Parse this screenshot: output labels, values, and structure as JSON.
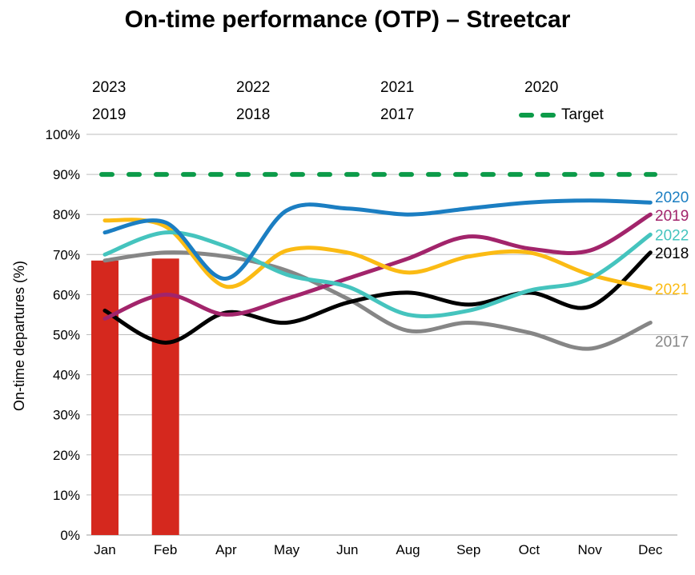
{
  "chart_data": {
    "type": "combo-bar-line",
    "title": "On-time performance (OTP) – Streetcar",
    "ylabel": "On-time departures (%)",
    "xlabel": "",
    "categories": [
      "Jan",
      "Feb",
      "Apr",
      "May",
      "Jun",
      "Aug",
      "Sep",
      "Oct",
      "Nov",
      "Dec"
    ],
    "ylim": [
      0,
      100
    ],
    "ytick_step": 10,
    "ytick_suffix": "%",
    "grid": true,
    "legend_position": "top",
    "legend_order": [
      "2023",
      "2022",
      "2021",
      "2020",
      "2019",
      "2018",
      "2017",
      "Target"
    ],
    "bar_series": [
      {
        "name": "2023",
        "color": "#D5281E",
        "values": [
          68.5,
          69,
          null,
          null,
          null,
          null,
          null,
          null,
          null,
          null
        ]
      }
    ],
    "line_series": [
      {
        "name": "2022",
        "color": "#45C4BE",
        "values": [
          70,
          75.5,
          72,
          65,
          62,
          55,
          56,
          61,
          64,
          75
        ]
      },
      {
        "name": "2021",
        "color": "#FBBB14",
        "values": [
          78.5,
          77,
          62,
          71,
          70.5,
          65.5,
          69.5,
          70.5,
          65,
          61.5
        ]
      },
      {
        "name": "2020",
        "color": "#1B7EC2",
        "values": [
          75.5,
          78,
          64,
          81,
          81.5,
          80,
          81.5,
          83,
          83.5,
          83
        ]
      },
      {
        "name": "2019",
        "color": "#A2246B",
        "values": [
          54,
          60,
          55,
          59,
          64,
          69,
          74.5,
          71.5,
          71,
          80
        ]
      },
      {
        "name": "2018",
        "color": "#000000",
        "values": [
          56,
          48,
          55.5,
          53,
          58,
          60.5,
          57.5,
          60.5,
          57,
          70.5
        ]
      },
      {
        "name": "2017",
        "color": "#868686",
        "values": [
          68.5,
          70.5,
          69.5,
          66,
          59,
          51,
          53,
          50.5,
          46.5,
          53
        ]
      }
    ],
    "target": {
      "name": "Target",
      "value": 90,
      "color": "#0C9B49",
      "style": "dashed"
    }
  }
}
